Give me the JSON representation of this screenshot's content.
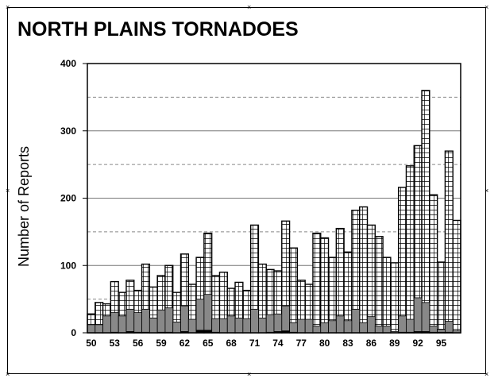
{
  "chart_data": {
    "type": "bar",
    "title": "NORTH PLAINS TORNADOES",
    "xlabel": "",
    "ylabel": "Number of Reports",
    "ylim": [
      0,
      400
    ],
    "yticks": [
      0,
      100,
      200,
      300,
      400
    ],
    "xtick_labels": [
      "50",
      "53",
      "56",
      "59",
      "62",
      "65",
      "68",
      "71",
      "74",
      "77",
      "80",
      "83",
      "86",
      "89",
      "92",
      "95"
    ],
    "categories": [
      "1950",
      "1951",
      "1952",
      "1953",
      "1954",
      "1955",
      "1956",
      "1957",
      "1958",
      "1959",
      "1960",
      "1961",
      "1962",
      "1963",
      "1964",
      "1965",
      "1966",
      "1967",
      "1968",
      "1969",
      "1970",
      "1971",
      "1972",
      "1973",
      "1974",
      "1975",
      "1976",
      "1977",
      "1978",
      "1979",
      "1980",
      "1981",
      "1982",
      "1983",
      "1984",
      "1985",
      "1986",
      "1987",
      "1988",
      "1989",
      "1990",
      "1991",
      "1992",
      "1993",
      "1994",
      "1995",
      "1996",
      "1997"
    ],
    "stacked": false,
    "series": [
      {
        "name": "",
        "style": "grid-hatched",
        "color": "#ffffff",
        "values": [
          28,
          45,
          43,
          76,
          60,
          78,
          63,
          102,
          68,
          85,
          100,
          60,
          117,
          72,
          112,
          148,
          85,
          90,
          66,
          75,
          63,
          160,
          102,
          94,
          92,
          166,
          126,
          78,
          72,
          148,
          141,
          112,
          155,
          120,
          182,
          187,
          160,
          143,
          112,
          104,
          216,
          248,
          278,
          360,
          205,
          105,
          270,
          167
        ]
      },
      {
        "name": "",
        "style": "gray",
        "color": "#888888",
        "values": [
          12,
          12,
          25,
          30,
          25,
          35,
          30,
          35,
          22,
          34,
          37,
          16,
          40,
          20,
          50,
          57,
          21,
          21,
          25,
          22,
          21,
          35,
          22,
          27,
          28,
          40,
          15,
          20,
          20,
          10,
          15,
          18,
          25,
          18,
          35,
          15,
          24,
          10,
          10,
          2,
          25,
          20,
          52,
          45,
          10,
          5,
          17,
          3
        ]
      },
      {
        "name": "",
        "style": "black",
        "color": "#000000",
        "values": [
          0,
          0,
          0,
          1,
          0,
          2,
          1,
          1,
          0,
          1,
          1,
          0,
          2,
          0,
          4,
          4,
          1,
          0,
          0,
          0,
          0,
          0,
          0,
          1,
          2,
          3,
          1,
          0,
          0,
          0,
          0,
          0,
          0,
          0,
          0,
          0,
          0,
          0,
          0,
          0,
          1,
          1,
          2,
          2,
          1,
          1,
          1,
          0
        ]
      }
    ],
    "grid": {
      "solid_at": [
        100,
        200,
        300
      ],
      "dashed_at": [
        50,
        150,
        250,
        350
      ]
    },
    "legend": "none"
  }
}
